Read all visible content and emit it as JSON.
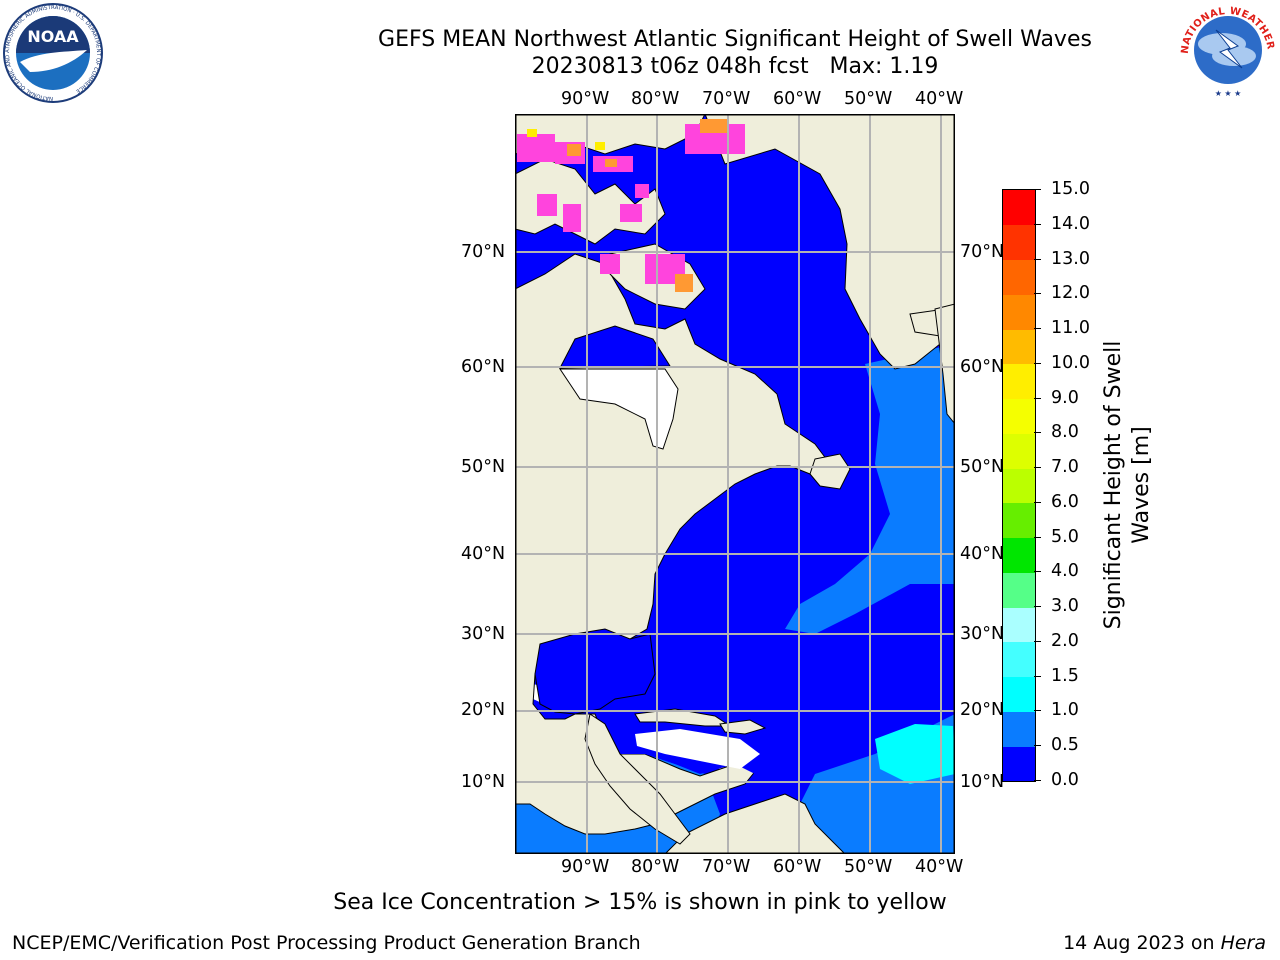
{
  "header": {
    "title_line1": "GEFS MEAN Northwest Atlantic Significant Height of Swell Waves",
    "title_line2": "20230813 t06z 048h fcst   Max: 1.19"
  },
  "logos": {
    "left": {
      "name": "noaa-logo",
      "text": "NOAA",
      "ring_text": "NATIONAL OCEANIC AND ATMOSPHERIC ADMINISTRATION · U.S. DEPARTMENT OF COMMERCE"
    },
    "right": {
      "name": "nws-logo",
      "ring_text": "NATIONAL WEATHER SERVICE"
    }
  },
  "map": {
    "lon_labels": [
      "90°W",
      "80°W",
      "70°W",
      "60°W",
      "50°W",
      "40°W"
    ],
    "lat_labels": [
      "70°N",
      "60°N",
      "50°N",
      "40°N",
      "30°N",
      "20°N",
      "10°N"
    ],
    "colors": {
      "land": "#efeedb",
      "ocean_low": "#0000ff",
      "ocean_mid": "#0a7cff",
      "ocean_high": "#00ffff",
      "ice_pink": "#ff44dd",
      "ice_orange": "#ff9933",
      "ice_yellow": "#ffee00",
      "grid": "#b3b3b3"
    }
  },
  "colorbar": {
    "label": "Significant Height of Swell Waves [m]",
    "tick_labels": [
      "15.0",
      "14.0",
      "13.0",
      "12.0",
      "11.0",
      "10.0",
      "9.0",
      "8.0",
      "7.0",
      "6.0",
      "5.0",
      "4.0",
      "3.0",
      "2.0",
      "1.5",
      "1.0",
      "0.5",
      "0.0"
    ],
    "bins": [
      {
        "range": "0.0-0.5",
        "color": "#0000ff"
      },
      {
        "range": "0.5-1.0",
        "color": "#0a7cff"
      },
      {
        "range": "1.0-1.5",
        "color": "#00ffff"
      },
      {
        "range": "1.5-2.0",
        "color": "#44ffff"
      },
      {
        "range": "2.0-3.0",
        "color": "#aaffff"
      },
      {
        "range": "3.0-4.0",
        "color": "#55ff88"
      },
      {
        "range": "4.0-5.0",
        "color": "#00e600"
      },
      {
        "range": "5.0-6.0",
        "color": "#66ee00"
      },
      {
        "range": "6.0-7.0",
        "color": "#bbff00"
      },
      {
        "range": "7.0-8.0",
        "color": "#ddff00"
      },
      {
        "range": "8.0-9.0",
        "color": "#f5ff00"
      },
      {
        "range": "9.0-10.0",
        "color": "#ffee00"
      },
      {
        "range": "10.0-11.0",
        "color": "#ffbb00"
      },
      {
        "range": "11.0-12.0",
        "color": "#ff8800"
      },
      {
        "range": "12.0-13.0",
        "color": "#ff6600"
      },
      {
        "range": "13.0-14.0",
        "color": "#ff3300"
      },
      {
        "range": "14.0-15.0",
        "color": "#ff0000"
      }
    ]
  },
  "note": "Sea Ice Concentration > 15% is shown in pink to yellow",
  "footer": {
    "left": "NCEP/EMC/Verification Post Processing Product Generation Branch",
    "date": "14 Aug 2023 on ",
    "machine": "Hera"
  }
}
